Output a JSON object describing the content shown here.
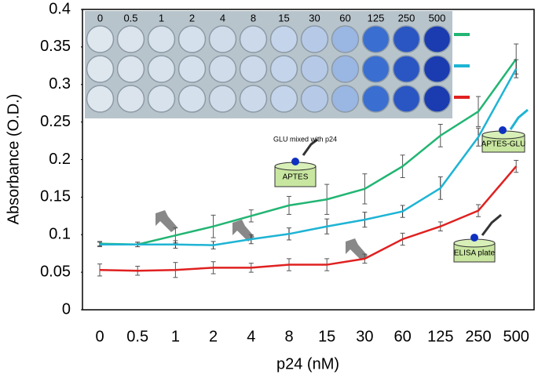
{
  "chart_data": {
    "type": "line",
    "x_label": "p24 (nM)",
    "y_label": "Absorbance (O.D.)",
    "categories": [
      "0",
      "0.5",
      "1",
      "2",
      "4",
      "8",
      "15",
      "30",
      "60",
      "125",
      "250",
      "500"
    ],
    "series": [
      {
        "name": "APTES",
        "color": "#22b573",
        "values": [
          0.088,
          0.087,
          0.099,
          0.111,
          0.125,
          0.139,
          0.147,
          0.161,
          0.191,
          0.232,
          0.264,
          0.334
        ],
        "errors": [
          0.003,
          0.003,
          0.01,
          0.015,
          0.008,
          0.012,
          0.02,
          0.02,
          0.015,
          0.015,
          0.02,
          0.02
        ]
      },
      {
        "name": "APTES-GLU",
        "color": "#1eb4d4",
        "values": [
          0.087,
          0.087,
          0.087,
          0.086,
          0.094,
          0.101,
          0.111,
          0.12,
          0.131,
          0.162,
          0.23,
          0.321
        ],
        "errors": [
          0.003,
          0.003,
          0.005,
          0.005,
          0.006,
          0.008,
          0.01,
          0.01,
          0.008,
          0.015,
          0.012,
          0.012
        ]
      },
      {
        "name": "ELISA plate",
        "color": "#e02020",
        "values": [
          0.053,
          0.052,
          0.053,
          0.056,
          0.056,
          0.06,
          0.06,
          0.068,
          0.094,
          0.111,
          0.132,
          0.191
        ],
        "errors": [
          0.008,
          0.006,
          0.01,
          0.008,
          0.006,
          0.008,
          0.008,
          0.006,
          0.008,
          0.006,
          0.008,
          0.008
        ]
      }
    ],
    "annotations": [
      "GLU mixed with p24"
    ],
    "ylim": [
      0,
      0.4
    ],
    "yticks": [
      0,
      0.05,
      0.1,
      0.15,
      0.2,
      0.25,
      0.3,
      0.35,
      0.4
    ]
  }
}
